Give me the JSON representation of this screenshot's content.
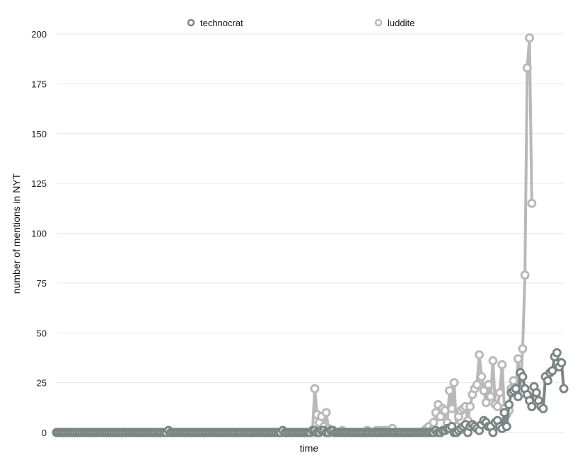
{
  "chart_data": {
    "type": "line",
    "title": "",
    "xlabel": "time",
    "ylabel": "number of mentions in NYT",
    "ylim": [
      0,
      200
    ],
    "yticks": [
      0,
      25,
      50,
      75,
      100,
      125,
      150,
      175,
      200
    ],
    "grid": true,
    "legend_position": "top",
    "markers": "hollow circles",
    "series": [
      {
        "name": "technocrat",
        "color": "#7a8584",
        "values": [
          0,
          0,
          0,
          0,
          0,
          0,
          0,
          0,
          0,
          0,
          0,
          0,
          0,
          0,
          0,
          0,
          0,
          0,
          0,
          0,
          0,
          0,
          0,
          0,
          0,
          0,
          0,
          0,
          0,
          0,
          0,
          0,
          0,
          0,
          0,
          0,
          0,
          0,
          0,
          0,
          0,
          0,
          0,
          0,
          0,
          0,
          0,
          0,
          0,
          1,
          0,
          0,
          0,
          0,
          0,
          0,
          0,
          0,
          0,
          0,
          0,
          0,
          0,
          0,
          0,
          0,
          0,
          0,
          0,
          0,
          0,
          0,
          0,
          0,
          0,
          0,
          0,
          0,
          0,
          0,
          0,
          0,
          0,
          0,
          0,
          0,
          0,
          0,
          0,
          0,
          0,
          0,
          0,
          0,
          0,
          0,
          0,
          0,
          0,
          1,
          0,
          0,
          0,
          0,
          0,
          0,
          0,
          0,
          0,
          0,
          0,
          0,
          1,
          1,
          0,
          0,
          1,
          1,
          0,
          0,
          1,
          1,
          0,
          0,
          0,
          0,
          0,
          0,
          0,
          0,
          0,
          0,
          0,
          0,
          0,
          0,
          0,
          0,
          0,
          0,
          0,
          0,
          0,
          0,
          0,
          0,
          0,
          0,
          0,
          0,
          0,
          0,
          0,
          0,
          0,
          0,
          0,
          0,
          0,
          0,
          0,
          0,
          0,
          0,
          0,
          0,
          1,
          0,
          0,
          1,
          1,
          2,
          2,
          3,
          0,
          0,
          1,
          2,
          3,
          4,
          0,
          3,
          4,
          3,
          2,
          1,
          4,
          6,
          5,
          3,
          3,
          0,
          5,
          6,
          3,
          2,
          10,
          3,
          14,
          20,
          21,
          22,
          18,
          30,
          28,
          22,
          19,
          16,
          13,
          23,
          20,
          16,
          13,
          12,
          28,
          26,
          30,
          31,
          38,
          40,
          33,
          35,
          22
        ],
        "x_extent": [
          0,
          222
        ]
      },
      {
        "name": "luddite",
        "color": "#b9b9b9",
        "values": [
          0,
          0,
          0,
          0,
          0,
          0,
          0,
          0,
          0,
          0,
          0,
          0,
          0,
          0,
          0,
          0,
          0,
          0,
          0,
          0,
          0,
          0,
          0,
          0,
          0,
          0,
          0,
          0,
          0,
          0,
          0,
          0,
          0,
          0,
          0,
          0,
          0,
          0,
          0,
          0,
          0,
          0,
          0,
          0,
          0,
          0,
          0,
          0,
          0,
          0,
          0,
          0,
          0,
          0,
          0,
          0,
          0,
          0,
          0,
          0,
          0,
          0,
          0,
          0,
          0,
          0,
          0,
          0,
          0,
          0,
          0,
          0,
          0,
          0,
          0,
          0,
          0,
          0,
          0,
          0,
          0,
          0,
          0,
          0,
          0,
          0,
          0,
          0,
          0,
          0,
          0,
          0,
          0,
          0,
          0,
          0,
          0,
          0,
          0,
          0,
          0,
          0,
          0,
          0,
          0,
          0,
          0,
          0,
          0,
          0,
          0,
          0,
          0,
          22,
          9,
          5,
          8,
          3,
          10,
          2,
          0,
          0,
          0,
          0,
          0,
          1,
          0,
          0,
          0,
          0,
          0,
          0,
          0,
          0,
          0,
          0,
          1,
          0,
          0,
          0,
          1,
          1,
          0,
          1,
          1,
          0,
          1,
          2,
          0,
          0,
          0,
          0,
          0,
          0,
          0,
          0,
          0,
          0,
          0,
          0,
          0,
          1,
          2,
          3,
          1,
          5,
          10,
          14,
          8,
          12,
          11,
          5,
          21,
          12,
          25,
          3,
          8,
          11,
          12,
          13,
          6,
          13,
          19,
          22,
          24,
          39,
          28,
          21,
          15,
          24,
          18,
          36,
          14,
          13,
          20,
          34,
          12,
          9,
          11,
          22,
          26,
          20,
          37,
          22,
          42,
          79,
          183,
          198,
          115
        ],
        "x_extent": [
          0,
          222
        ]
      }
    ]
  }
}
